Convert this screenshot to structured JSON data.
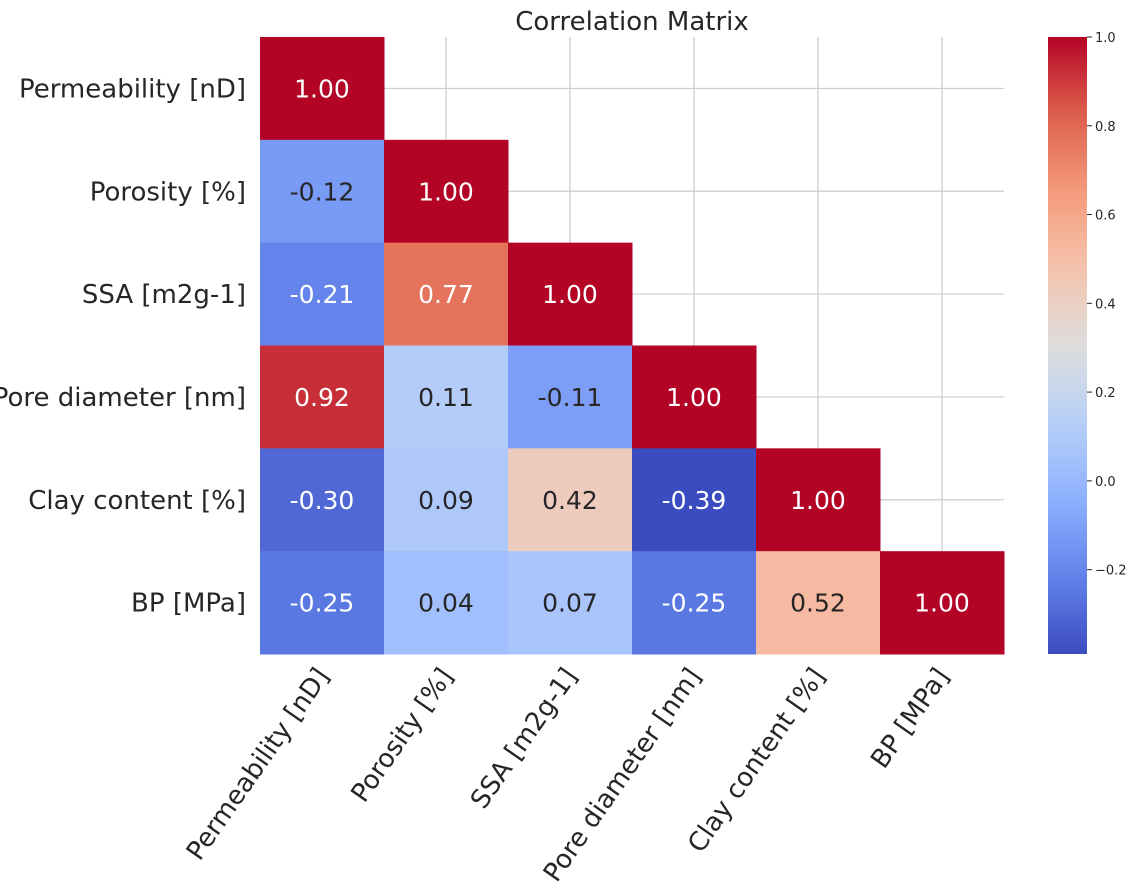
{
  "chart_data": {
    "type": "heatmap",
    "title": "Correlation Matrix",
    "labels": [
      "Permeability [nD]",
      "Porosity [%]",
      "SSA [m2g-1]",
      "Pore diameter [nm]",
      "Clay content [%]",
      "BP [MPa]"
    ],
    "matrix": [
      [
        1.0,
        null,
        null,
        null,
        null,
        null
      ],
      [
        -0.12,
        1.0,
        null,
        null,
        null,
        null
      ],
      [
        -0.21,
        0.77,
        1.0,
        null,
        null,
        null
      ],
      [
        0.92,
        0.11,
        -0.11,
        1.0,
        null,
        null
      ],
      [
        -0.3,
        0.09,
        0.42,
        -0.39,
        1.0,
        null
      ],
      [
        -0.25,
        0.04,
        0.07,
        -0.25,
        0.52,
        1.0
      ]
    ],
    "mask": "upper triangle",
    "colormap": "coolwarm",
    "value_range": [
      -0.39,
      1.0
    ],
    "colorbar_ticks": [
      "1.0",
      "0.8",
      "0.6",
      "0.4",
      "0.2",
      "0.0",
      "−0.2"
    ],
    "grid": true
  }
}
